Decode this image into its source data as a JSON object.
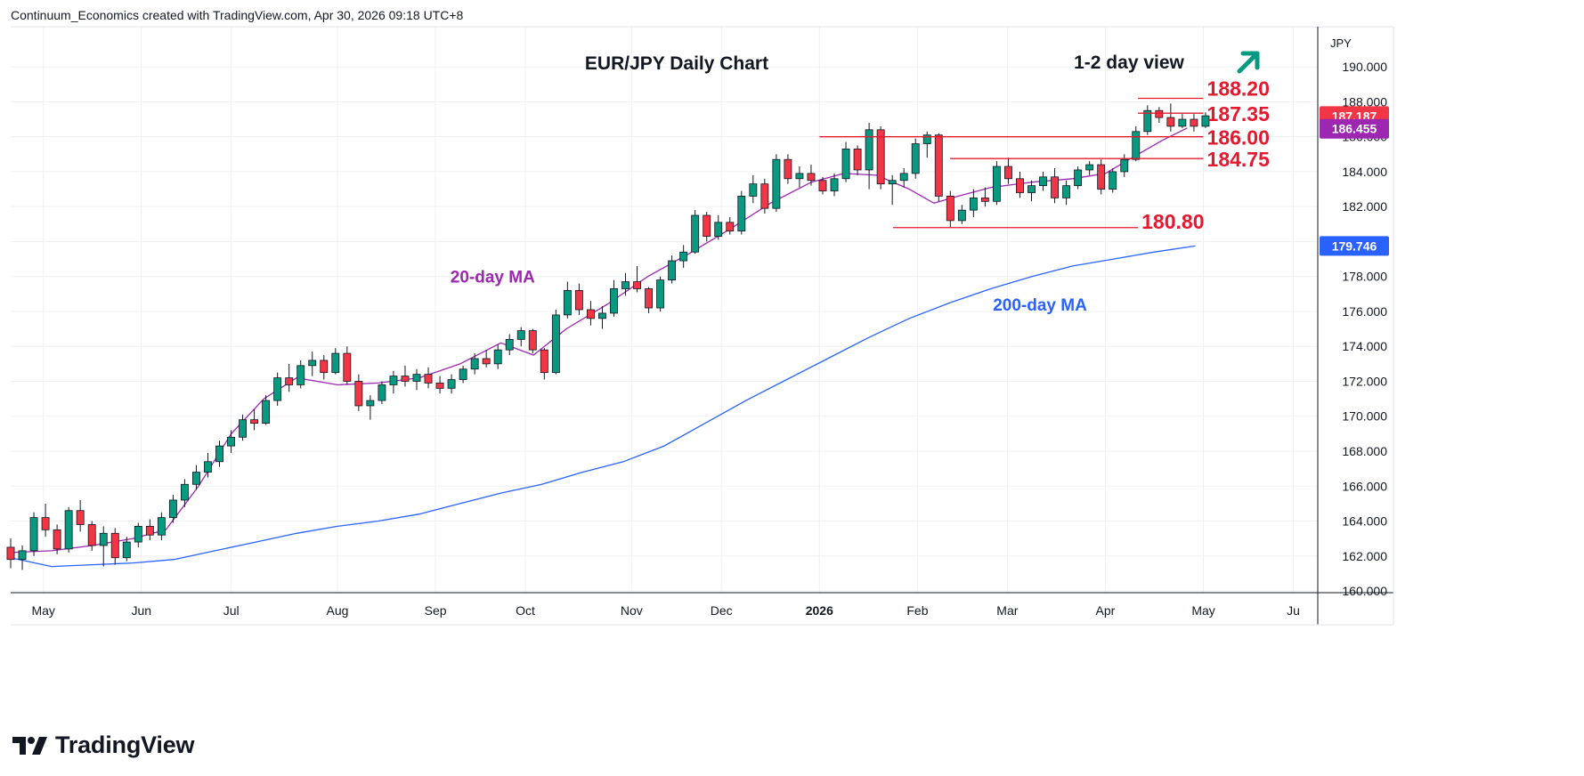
{
  "attribution": "Continuum_Economics created with TradingView.com, Apr 30, 2026 09:18 UTC+8",
  "brand": "TradingView",
  "chart_data": {
    "type": "candlestick",
    "title": "EUR/JPY Daily Chart",
    "view_label": "1-2 day view",
    "view_direction": "up",
    "currency_label": "JPY",
    "y_axis": {
      "ticks": [
        160,
        162,
        164,
        166,
        168,
        170,
        172,
        174,
        176,
        178,
        180,
        182,
        184,
        186,
        188,
        190
      ],
      "tick_labels": [
        "160.000",
        "162.000",
        "164.000",
        "166.000",
        "168.000",
        "170.000",
        "172.000",
        "174.000",
        "176.000",
        "178.000",
        "180.000",
        "182.000",
        "184.000",
        "186.000",
        "188.000",
        "190.000"
      ],
      "range": [
        159.9,
        192.3
      ],
      "position": "right"
    },
    "x_axis": {
      "labels": [
        {
          "t": 4,
          "text": "May"
        },
        {
          "t": 16,
          "text": "Jun"
        },
        {
          "t": 27,
          "text": "Jul"
        },
        {
          "t": 40,
          "text": "Aug"
        },
        {
          "t": 52,
          "text": "Sep"
        },
        {
          "t": 63,
          "text": "Oct"
        },
        {
          "t": 76,
          "text": "Nov"
        },
        {
          "t": 87,
          "text": "Dec"
        },
        {
          "t": 99,
          "text": "2026"
        },
        {
          "t": 111,
          "text": "Feb"
        },
        {
          "t": 122,
          "text": "Mar"
        },
        {
          "t": 134,
          "text": "Apr"
        },
        {
          "t": 146,
          "text": "May"
        },
        {
          "t": 157,
          "text": "Ju"
        }
      ],
      "range": [
        0,
        160
      ]
    },
    "grid": true,
    "ohlc": [
      [
        162.5,
        163.0,
        161.3,
        161.8
      ],
      [
        161.8,
        162.6,
        161.2,
        162.3
      ],
      [
        162.3,
        164.5,
        162.0,
        164.2
      ],
      [
        164.2,
        165.0,
        163.1,
        163.5
      ],
      [
        163.5,
        163.8,
        162.1,
        162.4
      ],
      [
        162.4,
        164.8,
        162.2,
        164.6
      ],
      [
        164.6,
        165.2,
        163.4,
        163.8
      ],
      [
        163.8,
        164.0,
        162.3,
        162.6
      ],
      [
        162.6,
        163.7,
        161.4,
        163.3
      ],
      [
        163.3,
        163.6,
        161.5,
        161.9
      ],
      [
        161.9,
        163.1,
        161.7,
        162.8
      ],
      [
        162.8,
        163.9,
        162.5,
        163.7
      ],
      [
        163.7,
        164.1,
        162.9,
        163.2
      ],
      [
        163.2,
        164.5,
        162.9,
        164.2
      ],
      [
        164.2,
        165.5,
        163.9,
        165.2
      ],
      [
        165.2,
        166.4,
        164.8,
        166.1
      ],
      [
        166.1,
        167.2,
        165.8,
        166.8
      ],
      [
        166.8,
        167.9,
        166.5,
        167.4
      ],
      [
        167.4,
        168.6,
        167.1,
        168.3
      ],
      [
        168.3,
        169.2,
        167.9,
        168.8
      ],
      [
        168.8,
        170.1,
        168.6,
        169.8
      ],
      [
        169.8,
        170.4,
        169.2,
        169.6
      ],
      [
        169.6,
        171.2,
        169.5,
        170.9
      ],
      [
        170.9,
        172.5,
        170.6,
        172.2
      ],
      [
        172.2,
        173.0,
        171.4,
        171.8
      ],
      [
        171.8,
        173.2,
        171.6,
        172.9
      ],
      [
        172.9,
        173.7,
        172.3,
        173.2
      ],
      [
        173.2,
        173.5,
        172.1,
        172.5
      ],
      [
        172.5,
        173.9,
        172.4,
        173.6
      ],
      [
        173.6,
        174.0,
        171.8,
        172.0
      ],
      [
        172.0,
        172.4,
        170.3,
        170.6
      ],
      [
        170.6,
        171.2,
        169.8,
        170.9
      ],
      [
        170.9,
        172.0,
        170.7,
        171.8
      ],
      [
        171.8,
        172.6,
        171.3,
        172.3
      ],
      [
        172.3,
        172.9,
        171.7,
        172.0
      ],
      [
        172.0,
        172.7,
        171.5,
        172.4
      ],
      [
        172.4,
        172.8,
        171.6,
        171.9
      ],
      [
        171.9,
        172.3,
        171.3,
        171.6
      ],
      [
        171.6,
        172.4,
        171.3,
        172.1
      ],
      [
        172.1,
        172.9,
        171.9,
        172.7
      ],
      [
        172.7,
        173.6,
        172.4,
        173.3
      ],
      [
        173.3,
        173.8,
        172.8,
        173.0
      ],
      [
        173.0,
        174.1,
        172.7,
        173.8
      ],
      [
        173.8,
        174.7,
        173.5,
        174.4
      ],
      [
        174.4,
        175.1,
        174.0,
        174.9
      ],
      [
        174.9,
        175.0,
        173.6,
        173.8
      ],
      [
        173.8,
        173.9,
        172.1,
        172.5
      ],
      [
        172.5,
        176.1,
        172.4,
        175.8
      ],
      [
        175.8,
        177.7,
        175.6,
        177.2
      ],
      [
        177.2,
        177.6,
        175.8,
        176.1
      ],
      [
        176.1,
        176.6,
        175.2,
        175.6
      ],
      [
        175.6,
        176.3,
        175.0,
        175.9
      ],
      [
        175.9,
        177.8,
        175.7,
        177.3
      ],
      [
        177.3,
        178.2,
        176.9,
        177.7
      ],
      [
        177.7,
        178.6,
        177.1,
        177.3
      ],
      [
        177.3,
        177.4,
        175.9,
        176.2
      ],
      [
        176.2,
        178.0,
        176.0,
        177.8
      ],
      [
        177.8,
        179.2,
        177.6,
        178.9
      ],
      [
        178.9,
        179.8,
        178.5,
        179.4
      ],
      [
        179.4,
        181.8,
        179.3,
        181.5
      ],
      [
        181.5,
        181.7,
        180.0,
        180.3
      ],
      [
        180.3,
        181.5,
        180.1,
        181.1
      ],
      [
        181.1,
        181.4,
        180.4,
        180.6
      ],
      [
        180.6,
        182.9,
        180.4,
        182.6
      ],
      [
        182.6,
        183.8,
        182.2,
        183.3
      ],
      [
        183.3,
        183.6,
        181.6,
        181.9
      ],
      [
        181.9,
        185.0,
        181.7,
        184.7
      ],
      [
        184.7,
        185.0,
        183.3,
        183.6
      ],
      [
        183.6,
        184.3,
        183.1,
        183.9
      ],
      [
        183.9,
        184.4,
        183.2,
        183.5
      ],
      [
        183.5,
        183.7,
        182.7,
        182.9
      ],
      [
        182.9,
        183.9,
        182.6,
        183.6
      ],
      [
        183.6,
        185.7,
        183.4,
        185.3
      ],
      [
        185.3,
        185.5,
        183.8,
        184.1
      ],
      [
        184.1,
        186.8,
        183.0,
        186.4
      ],
      [
        186.4,
        186.6,
        183.0,
        183.3
      ],
      [
        183.3,
        183.8,
        182.1,
        183.5
      ],
      [
        183.5,
        184.2,
        183.1,
        183.9
      ],
      [
        183.9,
        185.9,
        183.6,
        185.6
      ],
      [
        185.6,
        186.3,
        184.8,
        186.1
      ],
      [
        186.1,
        186.2,
        182.3,
        182.6
      ],
      [
        182.6,
        182.9,
        180.8,
        181.2
      ],
      [
        181.2,
        182.1,
        181.0,
        181.8
      ],
      [
        181.8,
        183.0,
        181.4,
        182.5
      ],
      [
        182.5,
        183.1,
        182.0,
        182.3
      ],
      [
        182.3,
        184.6,
        182.1,
        184.3
      ],
      [
        184.3,
        184.8,
        183.3,
        183.6
      ],
      [
        183.6,
        184.0,
        182.5,
        182.8
      ],
      [
        182.8,
        183.5,
        182.3,
        183.2
      ],
      [
        183.2,
        184.0,
        182.9,
        183.7
      ],
      [
        183.7,
        184.2,
        182.2,
        182.5
      ],
      [
        182.5,
        183.5,
        182.1,
        183.2
      ],
      [
        183.2,
        184.3,
        183.0,
        184.1
      ],
      [
        184.1,
        184.6,
        183.8,
        184.4
      ],
      [
        184.4,
        184.7,
        182.7,
        183.0
      ],
      [
        183.0,
        184.2,
        182.8,
        184.0
      ],
      [
        184.0,
        185.0,
        183.7,
        184.7
      ],
      [
        184.7,
        186.6,
        184.6,
        186.3
      ],
      [
        186.3,
        187.8,
        186.1,
        187.5
      ],
      [
        187.5,
        187.7,
        186.8,
        187.1
      ],
      [
        187.1,
        187.9,
        186.3,
        186.6
      ],
      [
        186.6,
        187.3,
        186.5,
        187.0
      ],
      [
        187.0,
        187.3,
        186.3,
        186.6
      ],
      [
        186.6,
        187.4,
        186.5,
        187.2
      ]
    ],
    "ohlc_start_t": 0,
    "ohlc_t_step": 1.42,
    "ma20": {
      "label": "20-day MA",
      "color": "#9c27b0",
      "points": [
        [
          0,
          162.2
        ],
        [
          5,
          162.3
        ],
        [
          10,
          162.6
        ],
        [
          15,
          163.0
        ],
        [
          19,
          163.5
        ],
        [
          23,
          166.0
        ],
        [
          27,
          169.0
        ],
        [
          31,
          171.0
        ],
        [
          35,
          172.2
        ],
        [
          40,
          171.8
        ],
        [
          45,
          171.9
        ],
        [
          50,
          172.2
        ],
        [
          55,
          173.0
        ],
        [
          60,
          174.2
        ],
        [
          64,
          173.5
        ],
        [
          68,
          175.0
        ],
        [
          73,
          176.4
        ],
        [
          78,
          178.0
        ],
        [
          83,
          179.3
        ],
        [
          88,
          180.7
        ],
        [
          93,
          182.2
        ],
        [
          98,
          183.4
        ],
        [
          102,
          183.9
        ],
        [
          106,
          183.8
        ],
        [
          110,
          183.0
        ],
        [
          113,
          182.2
        ],
        [
          116,
          182.6
        ],
        [
          120,
          183.1
        ],
        [
          125,
          183.4
        ],
        [
          130,
          183.6
        ],
        [
          134,
          183.9
        ],
        [
          138,
          185.0
        ],
        [
          141,
          185.8
        ],
        [
          144,
          186.5
        ]
      ]
    },
    "ma200": {
      "label": "200-day MA",
      "color": "#2962ff",
      "points": [
        [
          0,
          161.9
        ],
        [
          5,
          161.4
        ],
        [
          10,
          161.5
        ],
        [
          15,
          161.6
        ],
        [
          20,
          161.8
        ],
        [
          25,
          162.3
        ],
        [
          30,
          162.8
        ],
        [
          35,
          163.3
        ],
        [
          40,
          163.7
        ],
        [
          45,
          164.0
        ],
        [
          50,
          164.4
        ],
        [
          55,
          165.0
        ],
        [
          60,
          165.6
        ],
        [
          65,
          166.1
        ],
        [
          70,
          166.8
        ],
        [
          75,
          167.4
        ],
        [
          80,
          168.3
        ],
        [
          85,
          169.6
        ],
        [
          90,
          170.9
        ],
        [
          95,
          172.1
        ],
        [
          100,
          173.3
        ],
        [
          105,
          174.5
        ],
        [
          110,
          175.6
        ],
        [
          115,
          176.5
        ],
        [
          120,
          177.3
        ],
        [
          125,
          178.0
        ],
        [
          130,
          178.6
        ],
        [
          135,
          179.0
        ],
        [
          140,
          179.4
        ],
        [
          145,
          179.75
        ]
      ]
    },
    "levels": [
      {
        "value": 188.2,
        "label": "188.20",
        "t_from": 138,
        "t_to": 146,
        "label_y": 188.8
      },
      {
        "value": 187.35,
        "label": "187.35",
        "t_from": 138,
        "t_to": 146,
        "label_y": 187.35
      },
      {
        "value": 186.0,
        "label": "186.00",
        "t_from": 99,
        "t_to": 146,
        "label_y": 186.0
      },
      {
        "value": 184.75,
        "label": "184.75",
        "t_from": 115,
        "t_to": 146,
        "label_y": 184.75
      },
      {
        "value": 180.8,
        "label": "180.80",
        "t_from": 108,
        "t_to": 138,
        "label_y": 181.2
      }
    ],
    "price_badges": [
      {
        "value": 187.187,
        "label": "187.187",
        "color": "#f23645"
      },
      {
        "value": 186.455,
        "label": "186.455",
        "color": "#9c27b0"
      },
      {
        "value": 179.746,
        "label": "179.746",
        "color": "#2962ff"
      }
    ],
    "colors": {
      "up": "#089981",
      "down": "#f23645",
      "level": "#e5182d",
      "level_text": "#e5182d",
      "arrow": "#089981"
    }
  }
}
